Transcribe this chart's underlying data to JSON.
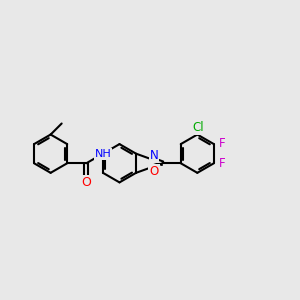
{
  "bg_color": "#e8e8e8",
  "bond_color": "#000000",
  "bond_lw": 1.5,
  "atom_colors": {
    "O": "#ff0000",
    "N": "#0000ff",
    "F": "#cc00cc",
    "Cl": "#00aa00",
    "C": "#000000",
    "H": "#555555"
  },
  "font_size": 8.5
}
